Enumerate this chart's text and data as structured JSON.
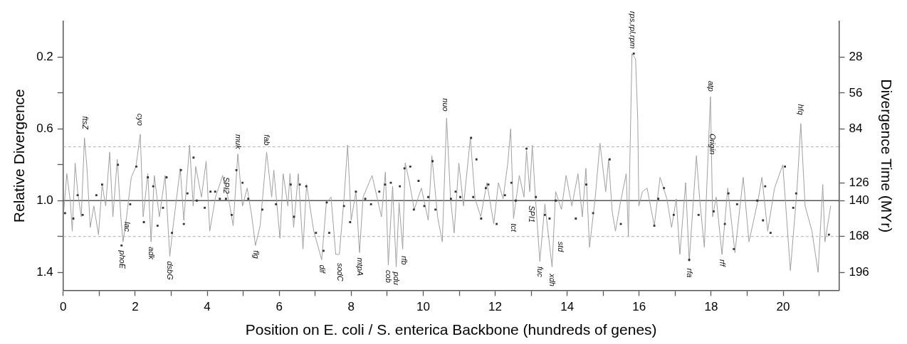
{
  "chart_data": {
    "type": "line",
    "xlabel": "Position on E. coli / S. enterica Backbone (hundreds of genes)",
    "ylabel": "Relative Divergence",
    "y2label": "Divergence Time (MYr)",
    "xlim": [
      0,
      21.55
    ],
    "xticks": [
      0,
      {
        "value": 1,
        "label": null
      },
      2,
      {
        "value": 3,
        "label": null
      },
      4,
      {
        "value": 5,
        "label": null
      },
      6,
      {
        "value": 7,
        "label": null
      },
      8,
      {
        "value": 9,
        "label": null
      },
      10,
      {
        "value": 11,
        "label": null
      },
      12,
      {
        "value": 13,
        "label": null
      },
      14,
      {
        "value": 15,
        "label": null
      },
      16,
      {
        "value": 17,
        "label": null
      },
      18,
      {
        "value": 19,
        "label": null
      },
      20,
      {
        "value": 21,
        "label": null
      }
    ],
    "ylim": [
      1.5,
      0
    ],
    "yticks": [
      0.2,
      {
        "value": 0.4,
        "label": null
      },
      0.6,
      {
        "value": 0.8,
        "label": null
      },
      {
        "value": 1,
        "label": "1.0"
      },
      {
        "value": 1.2,
        "label": null
      },
      1.4
    ],
    "y2lim": [
      210,
      0
    ],
    "y2ticks": [
      28,
      56,
      84,
      126,
      140,
      168,
      196
    ],
    "grid": false,
    "legend": false,
    "ref_lines": [
      {
        "axis": "y",
        "value": 1.0,
        "color": "#555555",
        "line_style": "solid"
      },
      {
        "axis": "y",
        "value": 0.7,
        "color": "#b0b0b0",
        "line_style": "dashed"
      },
      {
        "axis": "y",
        "value": 1.2,
        "color": "#b0b0b0",
        "line_style": "dashed"
      }
    ],
    "series": [
      {
        "color": "#a0a0a0",
        "marker": "none",
        "line_style": "solid",
        "x": [
          0.01,
          0.1,
          0.2,
          0.25,
          0.33,
          0.4,
          0.5,
          0.59,
          0.66,
          0.75,
          0.85,
          0.98,
          1.08,
          1.18,
          1.29,
          1.38,
          1.5,
          1.6,
          1.66,
          1.76,
          1.89,
          2.02,
          2.14,
          2.22,
          2.35,
          2.44,
          2.53,
          2.67,
          2.83,
          2.96,
          3.06,
          3.25,
          3.35,
          3.51,
          3.61,
          3.68,
          3.84,
          3.97,
          4.07,
          4.23,
          4.43,
          4.62,
          4.72,
          4.85,
          4.98,
          5.11,
          5.24,
          5.34,
          5.47,
          5.65,
          5.79,
          5.85,
          6.02,
          6.11,
          6.24,
          6.3,
          6.4,
          6.53,
          6.66,
          6.76,
          6.96,
          7.18,
          7.31,
          7.44,
          7.57,
          7.67,
          7.8,
          7.9,
          8.0,
          8.13,
          8.23,
          8.33,
          8.58,
          8.84,
          8.95,
          9.03,
          9.15,
          9.25,
          9.33,
          9.43,
          9.5,
          9.62,
          9.75,
          9.95,
          10.14,
          10.24,
          10.4,
          10.53,
          10.65,
          10.76,
          10.86,
          10.99,
          11.12,
          11.31,
          11.44,
          11.6,
          11.77,
          11.96,
          12.09,
          12.22,
          12.35,
          12.43,
          12.51,
          12.67,
          12.8,
          12.87,
          12.96,
          13.03,
          13.12,
          13.24,
          13.38,
          13.58,
          13.68,
          13.84,
          13.97,
          14.13,
          14.3,
          14.42,
          14.52,
          14.62,
          14.78,
          14.91,
          15.07,
          15.15,
          15.25,
          15.34,
          15.47,
          15.64,
          15.7,
          15.8,
          15.9,
          15.96,
          15.99,
          16.09,
          16.22,
          16.42,
          16.58,
          16.77,
          16.9,
          17.03,
          17.13,
          17.29,
          17.39,
          17.59,
          17.68,
          17.81,
          17.98,
          18.04,
          18.14,
          18.3,
          18.46,
          18.66,
          18.89,
          19.05,
          19.31,
          19.41,
          19.57,
          19.76,
          19.99,
          20.2,
          20.38,
          20.49,
          20.61,
          20.8,
          20.97,
          21.1,
          21.16,
          21.32
        ],
        "values": [
          1.07,
          0.85,
          1.01,
          1.17,
          0.79,
          0.95,
          1.09,
          0.65,
          0.82,
          1.15,
          1.03,
          1.19,
          0.91,
          1.03,
          0.73,
          1.09,
          0.77,
          1.09,
          1.23,
          1.09,
          0.87,
          0.81,
          0.63,
          1.09,
          0.85,
          1.23,
          0.86,
          1.09,
          0.86,
          1.31,
          1.13,
          0.82,
          1.11,
          0.69,
          1.03,
          0.81,
          0.98,
          0.78,
          1.17,
          0.98,
          0.86,
          1.02,
          1.14,
          0.74,
          1.03,
          0.93,
          1.09,
          1.25,
          1.14,
          0.73,
          0.98,
          0.83,
          1.21,
          0.85,
          1.03,
          0.85,
          1.15,
          0.85,
          1.27,
          0.91,
          1.17,
          1.33,
          1.01,
          0.98,
          1.3,
          1.3,
          0.99,
          0.69,
          1.11,
          0.95,
          1.29,
          0.98,
          0.86,
          1.09,
          0.84,
          1.36,
          0.92,
          1.37,
          1.01,
          1.27,
          0.79,
          0.9,
          1.05,
          0.93,
          1.11,
          0.75,
          1.09,
          1.23,
          0.54,
          0.99,
          1.18,
          0.79,
          1.03,
          0.65,
          0.99,
          1.09,
          0.9,
          1.13,
          0.9,
          0.99,
          0.79,
          0.6,
          1.1,
          0.86,
          0.98,
          0.72,
          0.95,
          0.69,
          0.99,
          1.34,
          1.02,
          1.37,
          0.95,
          1.05,
          0.86,
          1.03,
          0.85,
          1.09,
          0.82,
          1.26,
          0.98,
          0.68,
          0.95,
          0.77,
          1.06,
          1.17,
          1.02,
          0.85,
          1.2,
          0.18,
          0.21,
          0.55,
          1.03,
          0.95,
          0.93,
          1.14,
          0.87,
          0.99,
          1.15,
          0.99,
          1.3,
          0.9,
          1.34,
          0.75,
          0.99,
          1.26,
          0.42,
          1.09,
          0.98,
          1.3,
          0.93,
          1.29,
          0.87,
          1.23,
          0.99,
          0.87,
          1.17,
          0.93,
          0.8,
          1.39,
          0.95,
          0.57,
          1.03,
          1.17,
          1.4,
          0.91,
          1.23,
          1.03
        ]
      },
      {
        "type": "scatter",
        "color": "#333333",
        "marker": "square",
        "x": [
          0.05,
          0.28,
          0.4,
          0.54,
          0.92,
          1.08,
          1.52,
          1.62,
          1.86,
          2.03,
          2.24,
          2.35,
          2.5,
          2.62,
          2.77,
          2.87,
          3.02,
          3.27,
          3.35,
          3.45,
          3.62,
          3.71,
          3.93,
          4.09,
          4.22,
          4.35,
          4.52,
          4.68,
          4.81,
          4.98,
          5.14,
          5.53,
          5.91,
          6.32,
          6.41,
          6.57,
          6.75,
          7.02,
          7.23,
          7.32,
          7.39,
          7.8,
          7.97,
          8.13,
          8.39,
          8.55,
          8.78,
          8.94,
          9.1,
          9.35,
          9.48,
          9.64,
          9.74,
          9.87,
          10.03,
          10.14,
          10.26,
          10.34,
          10.77,
          10.9,
          11.03,
          11.33,
          11.39,
          11.48,
          11.61,
          11.74,
          11.81,
          12.04,
          12.27,
          12.45,
          12.57,
          12.87,
          13.13,
          13.38,
          13.51,
          13.68,
          14.24,
          14.53,
          14.72,
          15.18,
          15.49,
          15.85,
          16.42,
          16.53,
          16.69,
          16.96,
          17.39,
          17.65,
          18.07,
          18.38,
          18.48,
          18.63,
          18.72,
          19.28,
          19.44,
          19.5,
          19.65,
          20.05,
          20.28,
          20.36,
          21.27
        ],
        "values": [
          1.07,
          1.1,
          0.97,
          1.08,
          0.97,
          0.91,
          0.8,
          1.25,
          1.02,
          0.81,
          1.12,
          0.87,
          0.92,
          1.14,
          1.04,
          0.87,
          1.18,
          0.83,
          1.13,
          0.96,
          0.76,
          1.0,
          1.04,
          0.95,
          0.95,
          0.99,
          0.99,
          1.08,
          0.83,
          0.9,
          0.99,
          1.05,
          1.02,
          0.91,
          1.09,
          0.91,
          0.92,
          1.18,
          1.28,
          1.01,
          1.18,
          1.03,
          1.12,
          0.95,
          0.99,
          1.02,
          0.95,
          0.91,
          0.9,
          0.92,
          0.82,
          0.81,
          1.05,
          0.89,
          1.03,
          0.98,
          0.78,
          1.05,
          0.99,
          0.95,
          0.98,
          0.65,
          0.98,
          0.77,
          1.1,
          0.93,
          0.91,
          1.13,
          0.97,
          0.9,
          1.0,
          0.71,
          0.98,
          1.08,
          1.1,
          1.0,
          1.1,
          0.91,
          1.07,
          0.77,
          1.13,
          0.18,
          1.14,
          0.99,
          0.93,
          1.08,
          1.33,
          1.08,
          1.06,
          1.13,
          0.96,
          1.27,
          1.02,
          1.0,
          1.11,
          0.92,
          1.18,
          0.81,
          1.04,
          0.96,
          1.19
        ]
      }
    ],
    "annotations": [
      {
        "text": "ftsZ",
        "x": 0.6,
        "y": 0.63
      },
      {
        "text": "cyo",
        "x": 2.12,
        "y": 0.61
      },
      {
        "text": "muk",
        "x": 4.85,
        "y": 0.74
      },
      {
        "text": "SPI2",
        "x": 4.52,
        "y": 0.99
      },
      {
        "text": "fab",
        "x": 5.65,
        "y": 0.72
      },
      {
        "text": "lac",
        "x": 1.76,
        "y": 1.09
      },
      {
        "text": "phoE",
        "x": 1.62,
        "y": 1.25
      },
      {
        "text": "adk",
        "x": 2.44,
        "y": 1.23
      },
      {
        "text": "dsbG",
        "x": 2.96,
        "y": 1.31
      },
      {
        "text": "flg",
        "x": 5.34,
        "y": 1.25
      },
      {
        "text": "dif",
        "x": 7.18,
        "y": 1.33
      },
      {
        "text": "sodC",
        "x": 7.68,
        "y": 1.32
      },
      {
        "text": "mtpA",
        "x": 8.23,
        "y": 1.29
      },
      {
        "text": "cob",
        "x": 9.03,
        "y": 1.36
      },
      {
        "text": "pdu",
        "x": 9.25,
        "y": 1.37
      },
      {
        "text": "rfb",
        "x": 9.45,
        "y": 1.28
      },
      {
        "text": "nuo",
        "x": 10.6,
        "y": 0.53
      },
      {
        "text": "tct",
        "x": 12.51,
        "y": 1.1
      },
      {
        "text": "SPI1",
        "x": 13.0,
        "y": 1.0
      },
      {
        "text": "fuc",
        "x": 13.24,
        "y": 1.34
      },
      {
        "text": "xdh",
        "x": 13.58,
        "y": 1.38
      },
      {
        "text": "std",
        "x": 13.8,
        "y": 1.2
      },
      {
        "text": "rps,rpl,rpm",
        "x": 15.8,
        "y": 0.18
      },
      {
        "text": "atp",
        "x": 17.98,
        "y": 0.42
      },
      {
        "text": "Origin",
        "x": 18.03,
        "y": 0.77
      },
      {
        "text": "rfa",
        "x": 17.39,
        "y": 1.35
      },
      {
        "text": "rff",
        "x": 18.3,
        "y": 1.3
      },
      {
        "text": "hfq",
        "x": 20.47,
        "y": 0.55
      }
    ]
  }
}
